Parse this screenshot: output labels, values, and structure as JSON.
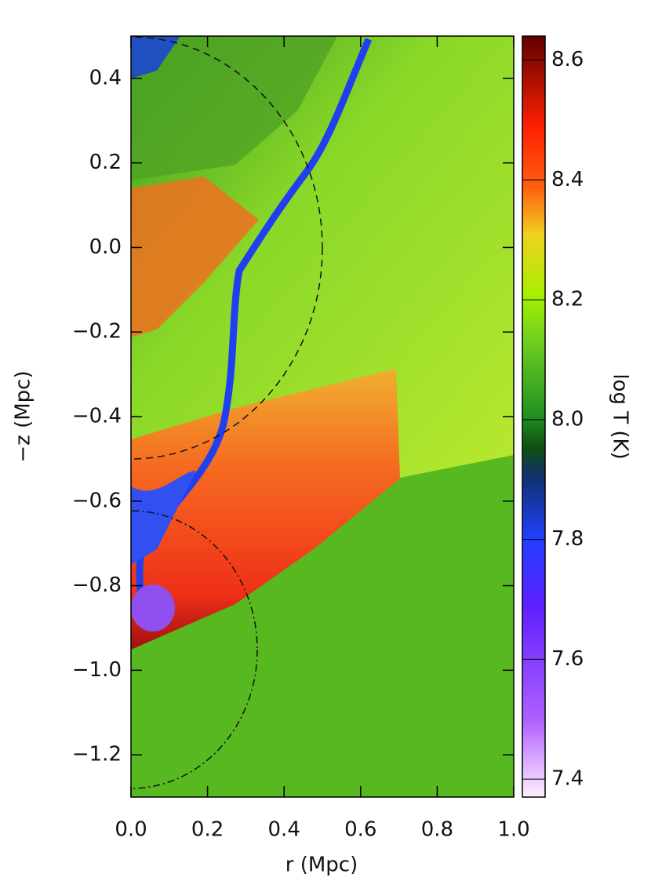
{
  "chart_data": {
    "type": "heatmap",
    "xlabel": "r (Mpc)",
    "ylabel": "−z (Mpc)",
    "colorbar_label": "log T (K)",
    "xlim": [
      0,
      1
    ],
    "xticks": [
      {
        "value": 0,
        "label": "0.0"
      },
      0.2,
      0.4,
      0.6,
      0.8,
      {
        "value": 1,
        "label": "1.0"
      }
    ],
    "ylim": [
      -1.3,
      0.5
    ],
    "yticks": [
      {
        "value": -1.2,
        "label": "−1.2"
      },
      {
        "value": -1.0,
        "label": "−1.0"
      },
      {
        "value": -0.8,
        "label": "−0.8"
      },
      {
        "value": -0.6,
        "label": "−0.6"
      },
      {
        "value": -0.4,
        "label": "−0.4"
      },
      {
        "value": -0.2,
        "label": "−0.2"
      },
      {
        "value": 0,
        "label": "0.0"
      },
      0.2,
      0.4
    ],
    "clim": [
      7.37,
      8.64
    ],
    "cticks": [
      7.4,
      7.6,
      7.8,
      {
        "value": 8.0,
        "label": "8.0"
      },
      8.2,
      8.4,
      8.6
    ]
  }
}
